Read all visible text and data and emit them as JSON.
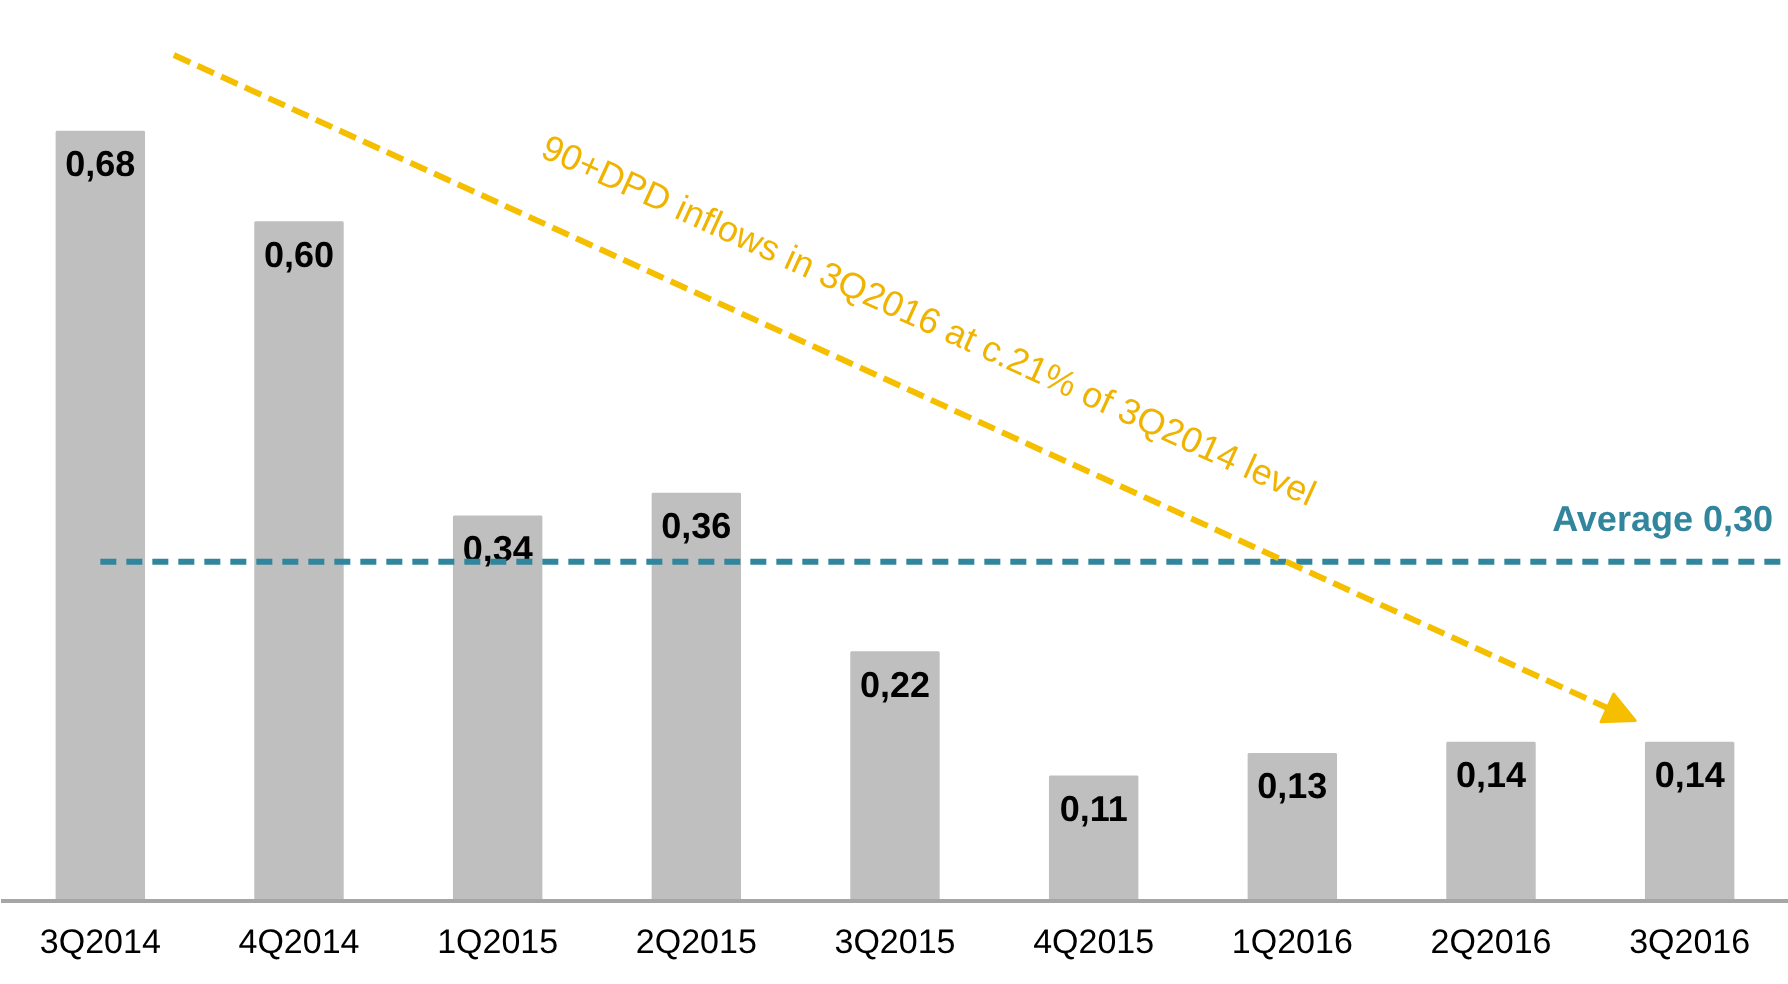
{
  "chart_data": {
    "type": "bar",
    "categories": [
      "3Q2014",
      "4Q2014",
      "1Q2015",
      "2Q2015",
      "3Q2015",
      "4Q2015",
      "1Q2016",
      "2Q2016",
      "3Q2016"
    ],
    "values": [
      0.68,
      0.6,
      0.34,
      0.36,
      0.22,
      0.11,
      0.13,
      0.14,
      0.14
    ],
    "value_labels": [
      "0,68",
      "0,60",
      "0,34",
      "0,36",
      "0,22",
      "0,11",
      "0,13",
      "0,14",
      "0,14"
    ],
    "color": "#bfbfbf",
    "ref_lines": [
      {
        "axis": "y",
        "value": 0.3,
        "label": "Average 0,30",
        "color": "#31859c",
        "line_style": "dashed"
      }
    ],
    "annotations": [
      "90+DPD inflows in 3Q2016 at c.21% of 3Q2014 level"
    ],
    "grid": false
  }
}
